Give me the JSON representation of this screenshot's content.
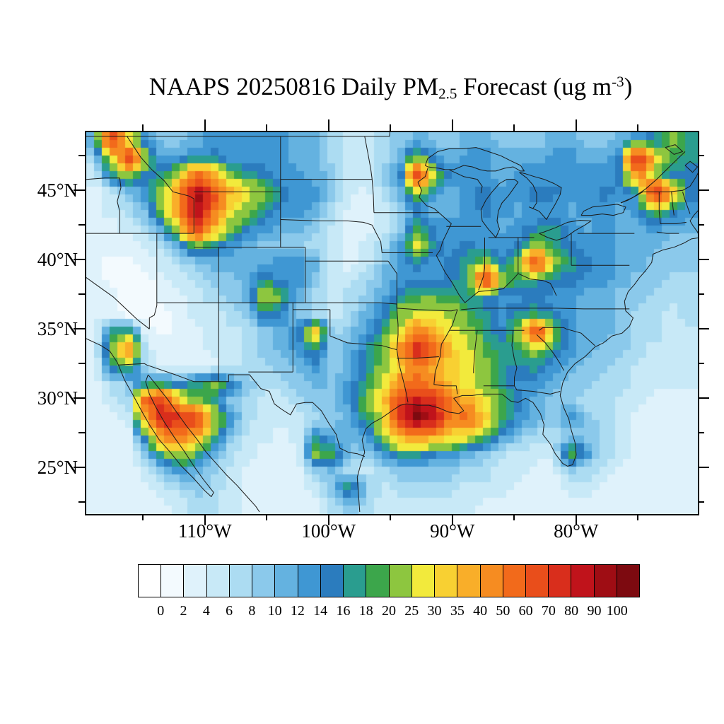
{
  "page": {
    "background": "#ffffff"
  },
  "title": {
    "prefix": "NAAPS 20250816 Daily PM",
    "subscript": "2.5",
    "mid": " Forecast (ug m",
    "superscript": "-3",
    "suffix": ")",
    "full_text": "NAAPS 20250816 Daily PM2.5 Forecast (ug m-3)"
  },
  "chart_data": {
    "type": "heatmap",
    "title": "NAAPS 20250816 Daily PM2.5 Forecast (ug m-3)",
    "model": "NAAPS",
    "date": "20250816",
    "variable": "Daily PM2.5",
    "units": "ug m-3",
    "x_axis": {
      "kind": "longitude",
      "tick_labels": [
        "110°W",
        "100°W",
        "90°W",
        "80°W"
      ],
      "tick_values_deg_west": [
        110,
        100,
        90,
        80
      ],
      "minor_tick_values_deg_west": [
        115,
        105,
        95,
        85,
        75
      ],
      "range_deg_west": [
        119.7,
        70.3
      ]
    },
    "y_axis": {
      "kind": "latitude",
      "tick_labels": [
        "45°N",
        "40°N",
        "35°N",
        "30°N",
        "25°N"
      ],
      "tick_values_deg_north": [
        45,
        40,
        35,
        30,
        25
      ],
      "minor_tick_values_deg_north": [
        47.5,
        42.5,
        37.5,
        32.5,
        27.5,
        22.5
      ],
      "range_deg_north": [
        49.3,
        21.8
      ]
    },
    "colorbar": {
      "orientation": "horizontal",
      "tick_labels": [
        "0",
        "2",
        "4",
        "6",
        "8",
        "10",
        "12",
        "14",
        "16",
        "18",
        "20",
        "25",
        "30",
        "35",
        "40",
        "50",
        "60",
        "70",
        "80",
        "90",
        "100"
      ],
      "levels": [
        0,
        2,
        4,
        6,
        8,
        10,
        12,
        14,
        16,
        18,
        20,
        25,
        30,
        35,
        40,
        50,
        60,
        70,
        80,
        90,
        100
      ],
      "colors": [
        "#FFFFFF",
        "#F3FAFE",
        "#DFF2FB",
        "#C8E9F7",
        "#ACDCF2",
        "#8BC9EB",
        "#64B2E0",
        "#3F97D3",
        "#2B7CBE",
        "#2A9D8F",
        "#3CA64B",
        "#8DC63F",
        "#F2EA3C",
        "#F8D032",
        "#F9AE29",
        "#F68C21",
        "#F26A1B",
        "#E94E1B",
        "#D92E1C",
        "#C0131B",
        "#9F0D14",
        "#7D0A10"
      ]
    },
    "grid": {
      "note": "Coarse estimate of the PM2.5 field (ug/m3), rows ordered north to south across lat 49.3N-21.8N, cols west to east across lon 119.7W-70.3W",
      "cols": 36,
      "rows": 22,
      "values": [
        [
          11,
          65,
          27,
          13,
          9,
          9,
          11,
          13,
          13,
          13,
          13,
          13,
          11,
          11,
          7,
          5,
          5,
          7,
          9,
          11,
          9,
          9,
          11,
          11,
          9,
          9,
          9,
          11,
          11,
          9,
          9,
          11,
          13,
          15,
          22,
          17
        ],
        [
          7,
          27,
          65,
          22,
          11,
          13,
          15,
          15,
          13,
          13,
          13,
          13,
          11,
          11,
          7,
          5,
          5,
          7,
          11,
          22,
          13,
          11,
          13,
          13,
          11,
          11,
          11,
          13,
          13,
          11,
          11,
          15,
          85,
          27,
          19,
          17
        ],
        [
          5,
          17,
          22,
          15,
          17,
          27,
          55,
          37,
          22,
          17,
          15,
          13,
          13,
          11,
          9,
          5,
          5,
          9,
          13,
          65,
          22,
          13,
          13,
          13,
          11,
          13,
          13,
          13,
          13,
          13,
          13,
          15,
          45,
          22,
          15,
          15
        ],
        [
          3,
          5,
          9,
          13,
          22,
          45,
          95,
          65,
          37,
          27,
          22,
          15,
          13,
          13,
          9,
          5,
          3,
          7,
          11,
          22,
          13,
          11,
          13,
          15,
          13,
          13,
          15,
          15,
          13,
          13,
          15,
          13,
          15,
          75,
          37,
          15
        ],
        [
          3,
          5,
          7,
          11,
          22,
          45,
          95,
          55,
          27,
          22,
          17,
          13,
          13,
          11,
          7,
          3,
          3,
          5,
          9,
          13,
          11,
          11,
          13,
          15,
          13,
          11,
          13,
          13,
          11,
          13,
          13,
          11,
          13,
          22,
          15,
          13
        ],
        [
          3,
          3,
          5,
          7,
          13,
          27,
          75,
          37,
          22,
          15,
          13,
          11,
          11,
          9,
          5,
          3,
          3,
          5,
          9,
          19,
          13,
          13,
          13,
          13,
          11,
          13,
          15,
          17,
          13,
          11,
          13,
          11,
          11,
          13,
          11,
          11
        ],
        [
          3,
          3,
          3,
          5,
          7,
          13,
          22,
          17,
          13,
          11,
          9,
          9,
          9,
          7,
          5,
          3,
          5,
          7,
          13,
          27,
          15,
          13,
          15,
          13,
          13,
          15,
          22,
          17,
          15,
          13,
          13,
          11,
          11,
          11,
          9,
          9
        ],
        [
          3,
          1,
          1,
          3,
          5,
          7,
          9,
          11,
          11,
          11,
          11,
          13,
          13,
          11,
          5,
          3,
          5,
          9,
          13,
          15,
          13,
          15,
          17,
          22,
          15,
          22,
          65,
          22,
          17,
          15,
          13,
          11,
          11,
          9,
          9,
          9
        ],
        [
          3,
          1,
          1,
          1,
          3,
          5,
          7,
          9,
          9,
          11,
          17,
          13,
          13,
          9,
          5,
          5,
          7,
          11,
          13,
          13,
          13,
          15,
          17,
          65,
          22,
          17,
          17,
          15,
          15,
          13,
          13,
          11,
          9,
          9,
          7,
          7
        ],
        [
          3,
          3,
          1,
          1,
          3,
          3,
          5,
          7,
          9,
          11,
          27,
          19,
          11,
          7,
          5,
          7,
          9,
          11,
          17,
          19,
          19,
          19,
          17,
          15,
          13,
          13,
          15,
          13,
          13,
          11,
          11,
          9,
          9,
          7,
          7,
          7
        ],
        [
          3,
          3,
          1,
          1,
          1,
          3,
          5,
          5,
          7,
          9,
          17,
          13,
          9,
          7,
          5,
          7,
          11,
          15,
          22,
          27,
          27,
          22,
          19,
          17,
          13,
          17,
          17,
          15,
          13,
          11,
          11,
          9,
          7,
          7,
          5,
          7
        ],
        [
          3,
          17,
          19,
          3,
          1,
          3,
          3,
          5,
          5,
          7,
          9,
          11,
          15,
          32,
          7,
          9,
          13,
          17,
          27,
          45,
          37,
          27,
          22,
          17,
          15,
          22,
          65,
          22,
          13,
          11,
          11,
          9,
          7,
          7,
          5,
          5
        ],
        [
          3,
          22,
          45,
          5,
          3,
          3,
          3,
          5,
          5,
          7,
          9,
          11,
          13,
          17,
          9,
          11,
          15,
          22,
          45,
          85,
          55,
          32,
          27,
          19,
          17,
          19,
          22,
          17,
          13,
          11,
          9,
          9,
          7,
          5,
          5,
          5
        ],
        [
          3,
          17,
          19,
          7,
          3,
          3,
          3,
          3,
          5,
          7,
          7,
          9,
          11,
          13,
          9,
          11,
          15,
          22,
          32,
          45,
          37,
          32,
          27,
          22,
          17,
          15,
          17,
          13,
          11,
          9,
          9,
          7,
          5,
          5,
          5,
          5
        ],
        [
          3,
          7,
          9,
          15,
          15,
          13,
          17,
          22,
          15,
          9,
          7,
          7,
          9,
          11,
          9,
          13,
          17,
          27,
          45,
          55,
          45,
          32,
          27,
          22,
          17,
          13,
          13,
          11,
          9,
          9,
          7,
          7,
          5,
          5,
          5,
          5
        ],
        [
          3,
          5,
          7,
          55,
          75,
          27,
          22,
          17,
          9,
          7,
          5,
          5,
          7,
          9,
          9,
          13,
          22,
          32,
          65,
          85,
          75,
          45,
          37,
          27,
          19,
          15,
          11,
          9,
          9,
          7,
          7,
          5,
          5,
          3,
          3,
          3
        ],
        [
          3,
          3,
          5,
          37,
          85,
          75,
          65,
          27,
          13,
          7,
          5,
          5,
          5,
          7,
          9,
          11,
          17,
          27,
          75,
          105,
          85,
          45,
          55,
          32,
          19,
          13,
          11,
          9,
          13,
          9,
          7,
          5,
          3,
          3,
          3,
          3
        ],
        [
          3,
          3,
          3,
          17,
          45,
          55,
          37,
          19,
          9,
          5,
          5,
          3,
          5,
          15,
          11,
          11,
          13,
          22,
          37,
          45,
          37,
          32,
          27,
          19,
          13,
          9,
          7,
          7,
          9,
          9,
          7,
          5,
          3,
          3,
          3,
          3
        ],
        [
          3,
          3,
          3,
          9,
          19,
          27,
          19,
          11,
          7,
          5,
          3,
          3,
          3,
          22,
          19,
          9,
          9,
          13,
          19,
          17,
          15,
          13,
          11,
          9,
          7,
          5,
          5,
          5,
          22,
          13,
          7,
          5,
          3,
          3,
          3,
          3
        ],
        [
          3,
          3,
          3,
          5,
          9,
          13,
          11,
          9,
          5,
          3,
          3,
          3,
          3,
          9,
          11,
          7,
          5,
          7,
          9,
          9,
          9,
          9,
          7,
          7,
          5,
          5,
          3,
          3,
          9,
          7,
          5,
          3,
          3,
          3,
          3,
          3
        ],
        [
          3,
          3,
          3,
          3,
          5,
          7,
          9,
          7,
          5,
          3,
          3,
          3,
          3,
          5,
          9,
          19,
          9,
          5,
          7,
          7,
          7,
          7,
          5,
          5,
          5,
          3,
          3,
          3,
          5,
          5,
          3,
          3,
          3,
          3,
          3,
          3
        ],
        [
          3,
          3,
          3,
          3,
          3,
          5,
          7,
          7,
          5,
          3,
          3,
          3,
          3,
          3,
          7,
          9,
          7,
          5,
          5,
          5,
          5,
          5,
          5,
          3,
          3,
          3,
          3,
          3,
          3,
          3,
          3,
          3,
          3,
          3,
          3,
          3
        ]
      ]
    }
  }
}
